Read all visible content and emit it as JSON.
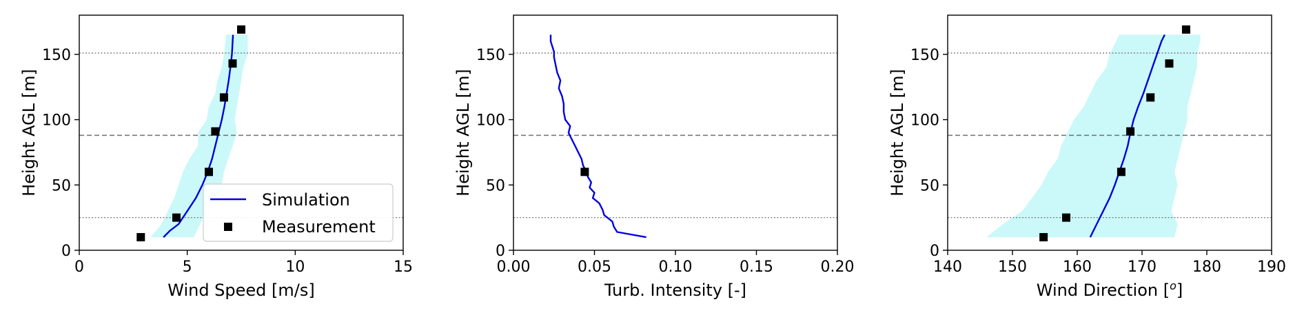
{
  "colors": {
    "simulation": "#0000dd",
    "measurement": "#000000",
    "band": "#cbf8f8",
    "hline": "#777777"
  },
  "chart_data": [
    {
      "type": "line",
      "xlabel": "Wind Speed [m/s]",
      "ylabel": "Height AGL [m]",
      "xlim": [
        0,
        15
      ],
      "ylim": [
        0,
        180
      ],
      "xticks": [
        0,
        5,
        10,
        15
      ],
      "xtick_labels": [
        "0",
        "5",
        "10",
        "15"
      ],
      "yticks": [
        0,
        50,
        100,
        150
      ],
      "ytick_labels": [
        "0",
        "50",
        "100",
        "150"
      ],
      "hlines": [
        {
          "y": 25,
          "style": "dotted"
        },
        {
          "y": 88,
          "style": "dashed"
        },
        {
          "y": 151,
          "style": "dotted"
        }
      ],
      "legend": {
        "location": "lower right",
        "entries": [
          "Simulation",
          "Measurement"
        ]
      },
      "series": [
        {
          "name": "Simulation",
          "kind": "line",
          "x": [
            3.9,
            4.2,
            4.6,
            5.0,
            5.4,
            5.7,
            5.95,
            6.15,
            6.3,
            6.45,
            6.6,
            6.72,
            6.82,
            6.92,
            7.0,
            7.07,
            7.12
          ],
          "y": [
            10,
            15,
            20,
            30,
            40,
            50,
            60,
            70,
            80,
            90,
            100,
            110,
            120,
            130,
            140,
            150,
            165
          ]
        },
        {
          "name": "Measurement",
          "kind": "scatter",
          "x": [
            2.85,
            4.5,
            6.0,
            6.3,
            6.7,
            7.1,
            7.5
          ],
          "y": [
            10,
            25,
            60,
            91,
            117,
            143,
            169
          ]
        }
      ],
      "band": {
        "y": [
          10,
          20,
          30,
          40,
          50,
          60,
          70,
          80,
          90,
          100,
          110,
          120,
          130,
          140,
          150,
          165
        ],
        "lower": [
          3.3,
          3.8,
          4.1,
          4.4,
          4.6,
          4.8,
          5.1,
          5.5,
          5.5,
          5.9,
          6.0,
          6.3,
          6.4,
          6.6,
          6.7,
          6.8
        ],
        "upper": [
          5.3,
          5.6,
          5.9,
          6.3,
          6.6,
          6.7,
          6.9,
          7.1,
          7.3,
          7.2,
          7.3,
          7.4,
          7.5,
          7.6,
          7.8,
          7.8
        ]
      }
    },
    {
      "type": "line",
      "xlabel": "Turb. Intensity [-]",
      "ylabel": "Height AGL [m]",
      "xlim": [
        0,
        0.2
      ],
      "ylim": [
        0,
        180
      ],
      "xticks": [
        0,
        0.05,
        0.1,
        0.15,
        0.2
      ],
      "xtick_labels": [
        "0.00",
        "0.05",
        "0.10",
        "0.15",
        "0.20"
      ],
      "yticks": [
        0,
        50,
        100,
        150
      ],
      "ytick_labels": [
        "0",
        "50",
        "100",
        "150"
      ],
      "hlines": [
        {
          "y": 25,
          "style": "dotted"
        },
        {
          "y": 88,
          "style": "dashed"
        },
        {
          "y": 151,
          "style": "dotted"
        }
      ],
      "series": [
        {
          "name": "Simulation",
          "kind": "line",
          "x": [
            0.082,
            0.064,
            0.062,
            0.061,
            0.056,
            0.055,
            0.053,
            0.049,
            0.05,
            0.047,
            0.048,
            0.046,
            0.045,
            0.043,
            0.042,
            0.04,
            0.038,
            0.036,
            0.034,
            0.035,
            0.032,
            0.031,
            0.031,
            0.03,
            0.028,
            0.029,
            0.027,
            0.026,
            0.025,
            0.025,
            0.024,
            0.023,
            0.023
          ],
          "y": [
            10,
            14,
            18,
            22,
            27,
            31,
            36,
            40,
            44,
            48,
            52,
            56,
            60,
            65,
            70,
            75,
            80,
            85,
            90,
            95,
            100,
            106,
            112,
            118,
            124,
            130,
            136,
            142,
            148,
            152,
            156,
            160,
            165
          ]
        },
        {
          "name": "Measurement",
          "kind": "scatter",
          "x": [
            0.044
          ],
          "y": [
            60
          ]
        }
      ]
    },
    {
      "type": "line",
      "xlabel": "Wind Direction [o]",
      "ylabel": "Height AGL [m]",
      "xlim": [
        140,
        190
      ],
      "ylim": [
        0,
        180
      ],
      "xticks": [
        140,
        150,
        160,
        170,
        180,
        190
      ],
      "xtick_labels": [
        "140",
        "150",
        "160",
        "170",
        "180",
        "190"
      ],
      "yticks": [
        0,
        50,
        100,
        150
      ],
      "ytick_labels": [
        "0",
        "50",
        "100",
        "150"
      ],
      "hlines": [
        {
          "y": 25,
          "style": "dotted"
        },
        {
          "y": 88,
          "style": "dashed"
        },
        {
          "y": 151,
          "style": "dotted"
        }
      ],
      "series": [
        {
          "name": "Simulation",
          "kind": "line",
          "x": [
            162.0,
            163.0,
            164.0,
            165.0,
            165.8,
            166.5,
            167.2,
            167.8,
            168.2,
            168.7,
            169.4,
            170.2,
            170.9,
            171.6,
            172.3,
            173.0,
            173.5
          ],
          "y": [
            10,
            20,
            30,
            40,
            50,
            60,
            70,
            80,
            90,
            100,
            110,
            120,
            130,
            140,
            150,
            160,
            165
          ]
        },
        {
          "name": "Measurement",
          "kind": "scatter",
          "x": [
            154.8,
            158.3,
            166.8,
            168.2,
            171.3,
            174.2,
            176.8
          ],
          "y": [
            10,
            25,
            60,
            91,
            117,
            143,
            169
          ]
        }
      ],
      "band": {
        "y": [
          10,
          20,
          30,
          40,
          50,
          60,
          70,
          80,
          90,
          100,
          110,
          120,
          130,
          140,
          150,
          160,
          165
        ],
        "lower": [
          146.0,
          148.5,
          151.5,
          153.0,
          154.5,
          155.5,
          157.0,
          157.5,
          158.5,
          159.5,
          161.0,
          162.0,
          163.0,
          164.5,
          165.0,
          166.0,
          166.5
        ],
        "upper": [
          175.0,
          175.5,
          174.5,
          175.0,
          175.5,
          175.0,
          175.5,
          176.0,
          176.5,
          177.0,
          177.0,
          177.5,
          178.0,
          178.5,
          178.5,
          179.0,
          179.0
        ]
      }
    }
  ]
}
